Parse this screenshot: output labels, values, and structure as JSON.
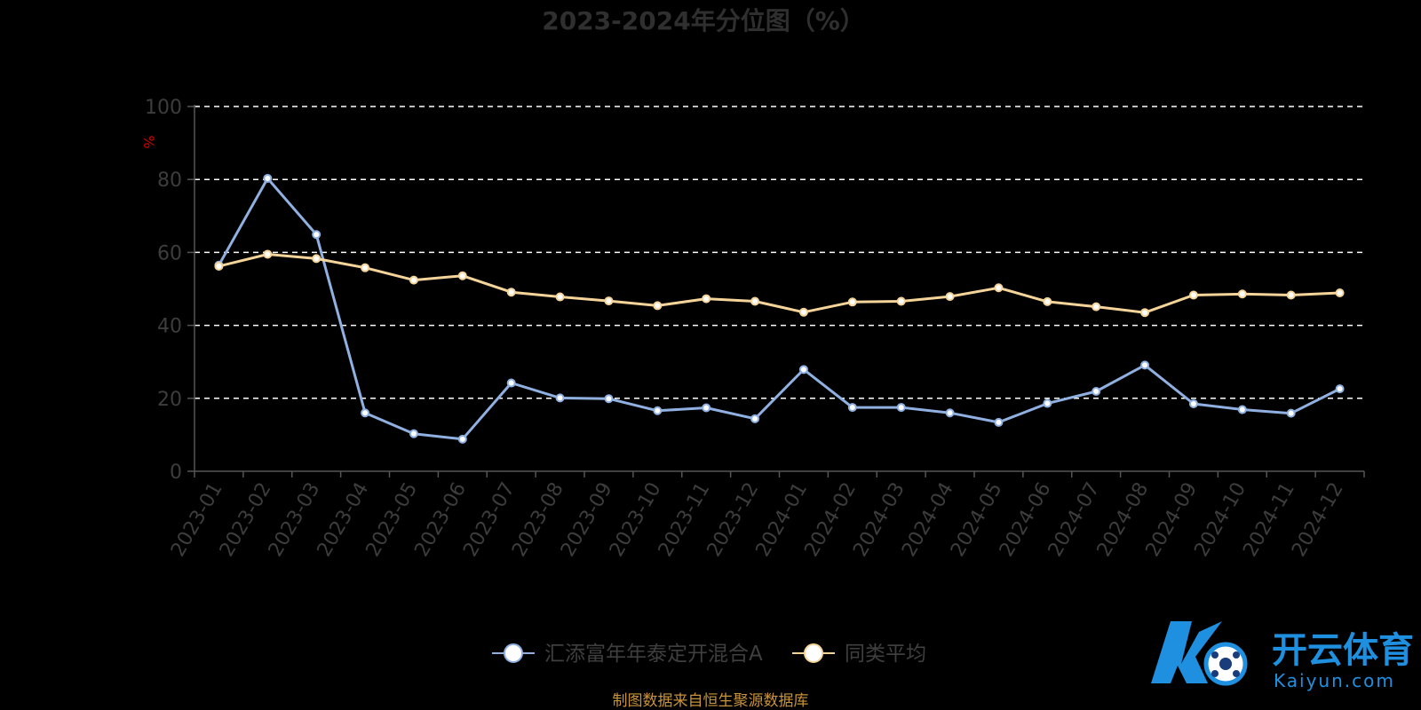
{
  "chart_data": {
    "type": "line",
    "title": "2023-2024年分位图（%）",
    "ylabel": "%",
    "xlabel": "",
    "ylim": [
      0,
      100
    ],
    "yticks": [
      0,
      20,
      40,
      60,
      80,
      100
    ],
    "grid": true,
    "legend_position": "bottom-center",
    "categories": [
      "2023-01",
      "2023-02",
      "2023-03",
      "2023-04",
      "2023-05",
      "2023-06",
      "2023-07",
      "2023-08",
      "2023-09",
      "2023-10",
      "2023-11",
      "2023-12",
      "2024-01",
      "2024-02",
      "2024-03",
      "2024-04",
      "2024-05",
      "2024-06",
      "2024-07",
      "2024-08",
      "2024-09",
      "2024-10",
      "2024-11",
      "2024-12"
    ],
    "series": [
      {
        "name": "汇添富年年泰定开混合A",
        "color": "#8fb0e0",
        "values": [
          56.5,
          80.3,
          64.9,
          16.0,
          10.3,
          8.8,
          24.2,
          20.1,
          19.9,
          16.6,
          17.4,
          14.4,
          27.9,
          17.5,
          17.5,
          16.0,
          13.4,
          18.6,
          21.9,
          29.1,
          18.5,
          16.9,
          15.9,
          22.6
        ]
      },
      {
        "name": "同类平均",
        "color": "#f5d49a",
        "values": [
          56.2,
          59.5,
          58.3,
          55.8,
          52.4,
          53.6,
          49.1,
          47.8,
          46.7,
          45.4,
          47.3,
          46.6,
          43.6,
          46.4,
          46.6,
          47.9,
          50.3,
          46.5,
          45.1,
          43.5,
          48.3,
          48.6,
          48.3,
          48.9
        ]
      }
    ]
  },
  "source_note": "制图数据来自恒生聚源数据库",
  "watermark": {
    "cn": "开云体育",
    "en": "Kaiyun.com"
  },
  "colors": {
    "background": "#000000",
    "grid": "#ffffff",
    "axis": "#555555"
  }
}
